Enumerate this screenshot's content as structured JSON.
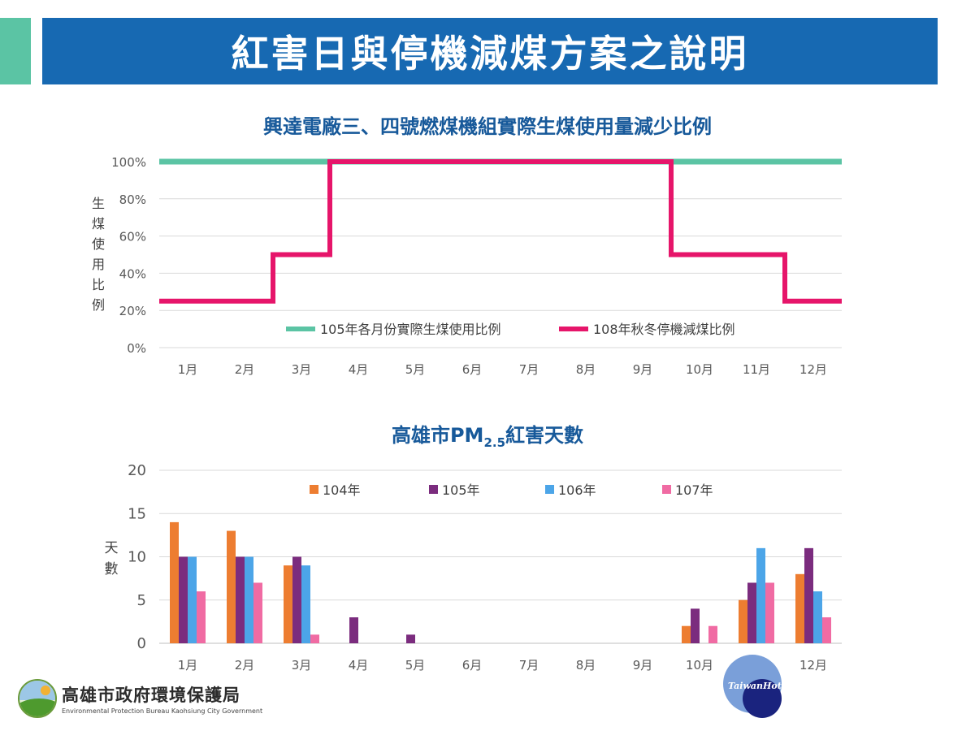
{
  "slide_title": "紅害日與停機減煤方案之說明",
  "chart1_title": "興達電廠三、四號燃煤機組實際生煤使用量減少比例",
  "chart2_title_main": "高雄市PM",
  "chart2_title_sub": "2.5",
  "chart2_title_tail": "紅害天數",
  "logo": {
    "zh": "高雄市政府環境保護局",
    "en": "Environmental Protection Bureau Kaohsiung City Government"
  },
  "watermark": "TaiwanHot",
  "chart_data": [
    {
      "type": "line",
      "title": "興達電廠三、四號燃煤機組實際生煤使用量減少比例",
      "ylabel": "生煤使用比例",
      "ylim": [
        0,
        100
      ],
      "yticks": [
        "0%",
        "20%",
        "40%",
        "60%",
        "80%",
        "100%"
      ],
      "yticks_values": [
        0,
        20,
        40,
        60,
        80,
        100
      ],
      "categories": [
        "1月",
        "2月",
        "3月",
        "4月",
        "5月",
        "6月",
        "7月",
        "8月",
        "9月",
        "10月",
        "11月",
        "12月"
      ],
      "step": true,
      "legend_position": "bottom",
      "series": [
        {
          "name": "105年各月份實際生煤使用比例",
          "color": "#5bc4a4",
          "values": [
            100,
            100,
            100,
            100,
            100,
            100,
            100,
            100,
            100,
            100,
            100,
            100
          ]
        },
        {
          "name": "108年秋冬停機減煤比例",
          "color": "#e6156a",
          "values": [
            25,
            25,
            50,
            100,
            100,
            100,
            100,
            100,
            100,
            50,
            50,
            25
          ]
        }
      ]
    },
    {
      "type": "bar",
      "title": "高雄市PM2.5紅害天數",
      "ylabel": "天數",
      "ylim": [
        0,
        20
      ],
      "yticks": [
        "0",
        "5",
        "10",
        "15",
        "20"
      ],
      "yticks_values": [
        0,
        5,
        10,
        15,
        20
      ],
      "categories": [
        "1月",
        "2月",
        "3月",
        "4月",
        "5月",
        "6月",
        "7月",
        "8月",
        "9月",
        "10月",
        "11月",
        "12月"
      ],
      "legend_position": "top",
      "series": [
        {
          "name": "104年",
          "color": "#ed7d31",
          "values": [
            14,
            13,
            9,
            0,
            0,
            0,
            0,
            0,
            0,
            2,
            5,
            8
          ]
        },
        {
          "name": "105年",
          "color": "#7b2c7e",
          "values": [
            10,
            10,
            10,
            3,
            1,
            0,
            0,
            0,
            0,
            4,
            7,
            11
          ]
        },
        {
          "name": "106年",
          "color": "#4ca5e8",
          "values": [
            10,
            10,
            9,
            0,
            0,
            0,
            0,
            0,
            0,
            0,
            11,
            6
          ]
        },
        {
          "name": "107年",
          "color": "#f06ba3",
          "values": [
            6,
            7,
            1,
            0,
            0,
            0,
            0,
            0,
            0,
            2,
            7,
            3
          ]
        }
      ]
    }
  ]
}
